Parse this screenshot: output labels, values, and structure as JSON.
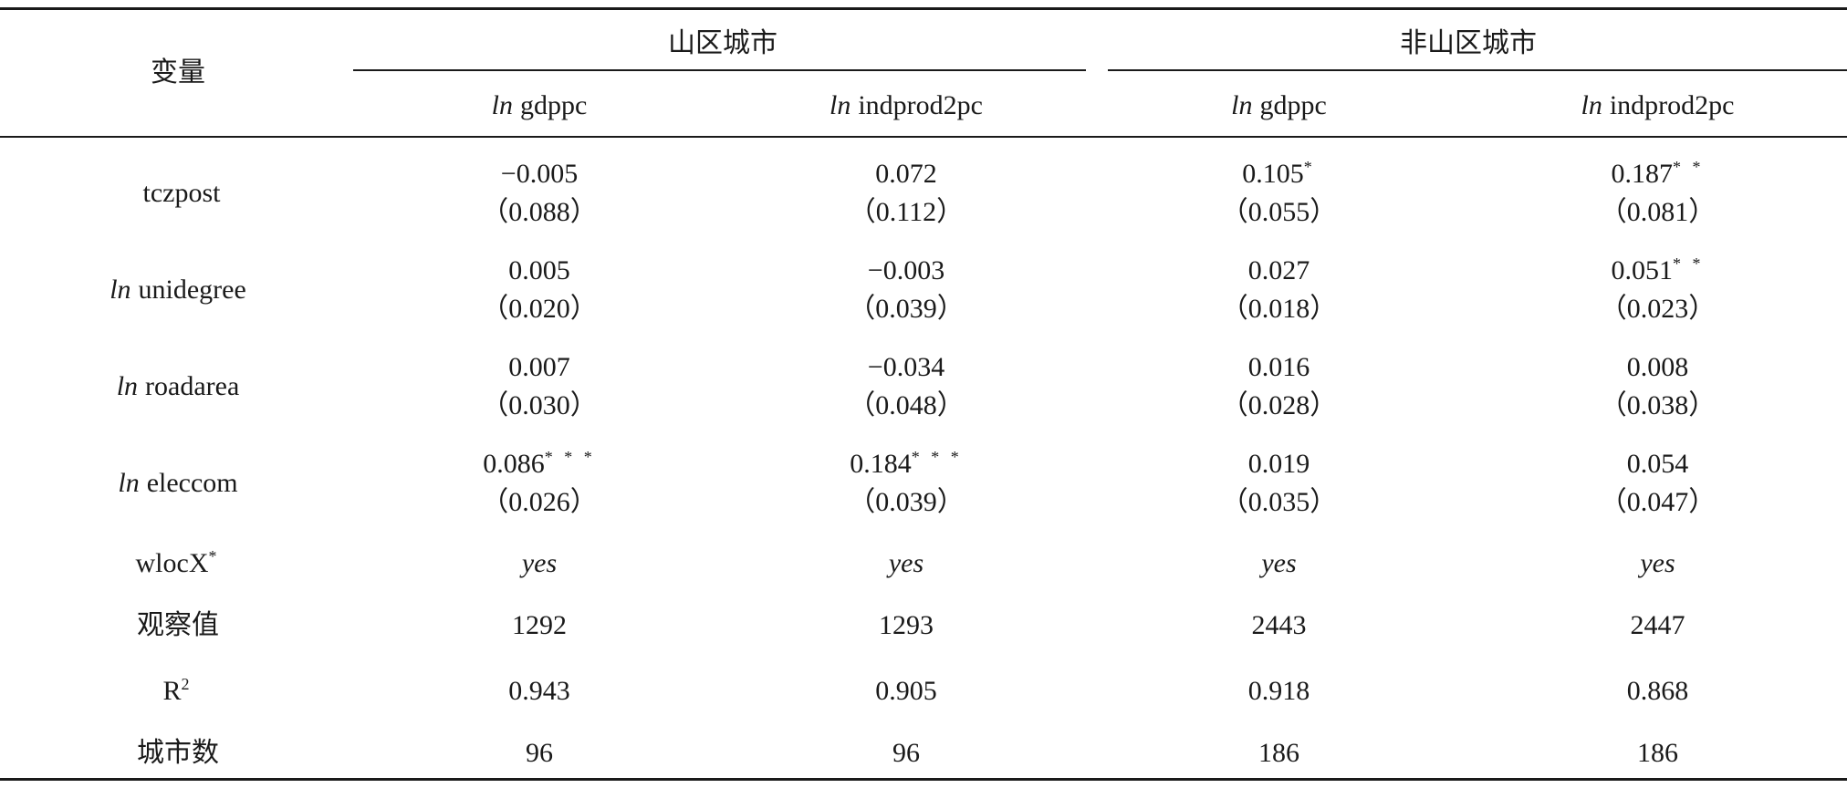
{
  "header": {
    "variable_label": "变量",
    "group_mountain": "山区城市",
    "group_nonmountain": "非山区城市",
    "columns": [
      {
        "ln": "ln",
        "var": "gdppc"
      },
      {
        "ln": "ln",
        "var": "indprod2pc"
      },
      {
        "ln": "ln",
        "var": "gdppc"
      },
      {
        "ln": "ln",
        "var": "indprod2pc"
      }
    ]
  },
  "rows": [
    {
      "label": "tczpost",
      "ln": "",
      "cells": [
        {
          "coef": "−0.005",
          "stars": "",
          "se": "（0.088）"
        },
        {
          "coef": "0.072",
          "stars": "",
          "se": "（0.112）"
        },
        {
          "coef": "0.105",
          "stars": "*",
          "se": "（0.055）"
        },
        {
          "coef": "0.187",
          "stars": "* *",
          "se": "（0.081）"
        }
      ]
    },
    {
      "label": "unidegree",
      "ln": "ln",
      "cells": [
        {
          "coef": "0.005",
          "stars": "",
          "se": "（0.020）"
        },
        {
          "coef": "−0.003",
          "stars": "",
          "se": "（0.039）"
        },
        {
          "coef": "0.027",
          "stars": "",
          "se": "（0.018）"
        },
        {
          "coef": "0.051",
          "stars": "* *",
          "se": "（0.023）"
        }
      ]
    },
    {
      "label": "roadarea",
      "ln": "ln",
      "cells": [
        {
          "coef": "0.007",
          "stars": "",
          "se": "（0.030）"
        },
        {
          "coef": "−0.034",
          "stars": "",
          "se": "（0.048）"
        },
        {
          "coef": "0.016",
          "stars": "",
          "se": "（0.028）"
        },
        {
          "coef": "0.008",
          "stars": "",
          "se": "（0.038）"
        }
      ]
    },
    {
      "label": "eleccom",
      "ln": "ln",
      "cells": [
        {
          "coef": "0.086",
          "stars": "* * *",
          "se": "（0.026）"
        },
        {
          "coef": "0.184",
          "stars": "* * *",
          "se": "（0.039）"
        },
        {
          "coef": "0.019",
          "stars": "",
          "se": "（0.035）"
        },
        {
          "coef": "0.054",
          "stars": "",
          "se": "（0.047）"
        }
      ]
    }
  ],
  "wloc": {
    "label": "wlocX",
    "label_sup": "*",
    "values": [
      "yes",
      "yes",
      "yes",
      "yes"
    ]
  },
  "obs": {
    "label": "观察值",
    "values": [
      "1292",
      "1293",
      "2443",
      "2447"
    ]
  },
  "r2": {
    "label": "R",
    "label_sup": "2",
    "values": [
      "0.943",
      "0.905",
      "0.918",
      "0.868"
    ]
  },
  "cities": {
    "label": "城市数",
    "values": [
      "96",
      "96",
      "186",
      "186"
    ]
  }
}
